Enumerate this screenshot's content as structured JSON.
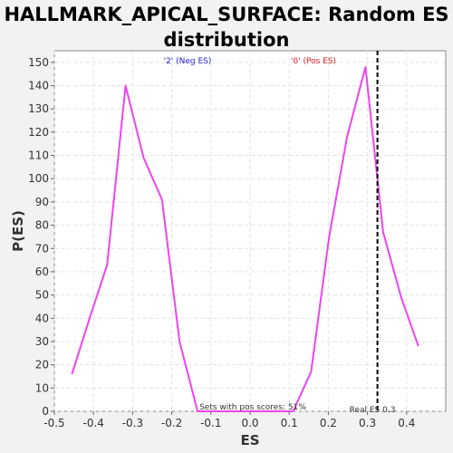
{
  "chart_data": {
    "type": "line",
    "title": "HALLMARK_APICAL_SURFACE: Random ES\ndistribution",
    "xlabel": "ES",
    "ylabel": "P(ES)",
    "xlim": [
      -0.5,
      0.5
    ],
    "ylim": [
      0,
      155
    ],
    "xticks": [
      -0.5,
      -0.4,
      -0.3,
      -0.2,
      -0.1,
      0.0,
      0.1,
      0.2,
      0.3,
      0.4
    ],
    "xtick_labels": [
      "-0.5",
      "-0.4",
      "-0.3",
      "-0.2",
      "-0.1",
      "0.0",
      "0.1",
      "0.2",
      "0.3",
      "0.4"
    ],
    "yticks": [
      0,
      10,
      20,
      30,
      40,
      50,
      60,
      70,
      80,
      90,
      100,
      110,
      120,
      130,
      140,
      150
    ],
    "grid": true,
    "series": [
      {
        "color": "#ee44ee",
        "x": [
          -0.455,
          -0.41,
          -0.365,
          -0.318,
          -0.272,
          -0.225,
          -0.18,
          -0.134,
          -0.088,
          0.0,
          0.064,
          0.11,
          0.156,
          0.202,
          0.248,
          0.295,
          0.34,
          0.386,
          0.43
        ],
        "y": [
          16,
          40,
          63,
          140,
          109,
          91,
          30,
          0,
          0,
          0,
          0,
          0,
          17,
          75,
          118,
          148,
          77,
          49,
          28
        ]
      }
    ],
    "real_es": 0.3,
    "annotations": {
      "neg_label": "'2' (Neg ES)",
      "pos_label": "'0' (Pos ES)",
      "sets_text": "Sets with pos scores: 51%",
      "real_es_text": "Real ES 0.3"
    },
    "colors": {
      "neg_label": "#2222cc",
      "pos_label": "#dd2222",
      "real_es_line": "#000000"
    }
  }
}
